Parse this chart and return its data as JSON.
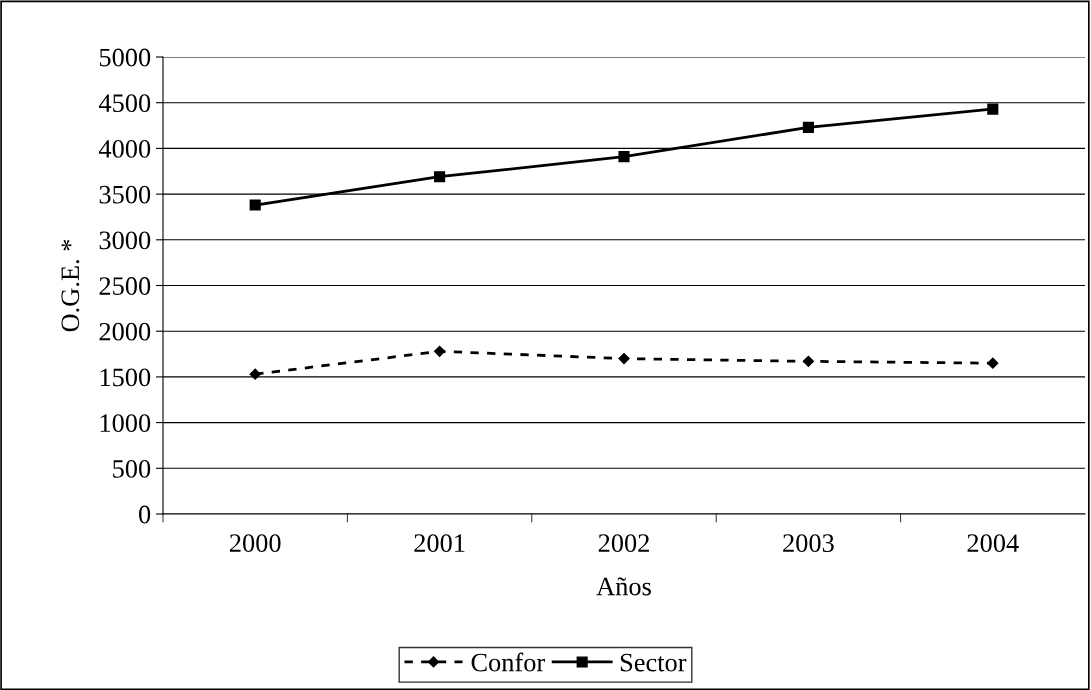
{
  "chart_data": {
    "type": "line",
    "xlabel": "Años",
    "ylabel": "O.G.E. *",
    "categories": [
      "2000",
      "2001",
      "2002",
      "2003",
      "2004"
    ],
    "series": [
      {
        "name": "Confor",
        "color": "#000000",
        "values": [
          1530,
          1780,
          1700,
          1670,
          1650
        ],
        "marker": "diamond",
        "line_style": "dotted"
      },
      {
        "name": "Sector",
        "color": "#000000",
        "values": [
          3380,
          3690,
          3910,
          4230,
          4430
        ],
        "marker": "square",
        "line_style": "solid"
      }
    ],
    "ylim": [
      0,
      5000
    ],
    "yticks": [
      0,
      500,
      1000,
      1500,
      2000,
      2500,
      3000,
      3500,
      4000,
      4500,
      5000
    ],
    "grid": "y",
    "legend": "bottom"
  }
}
